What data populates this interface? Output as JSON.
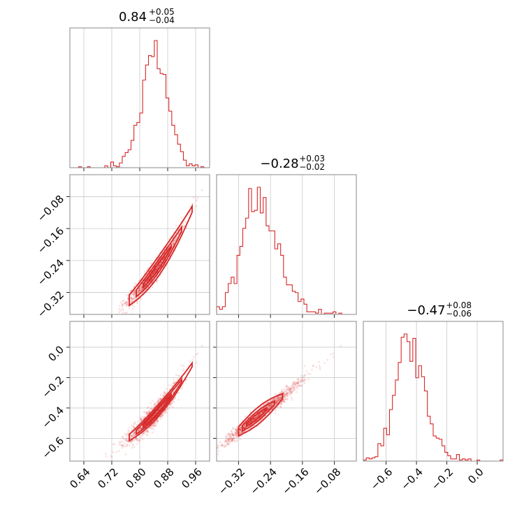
{
  "chart_data": {
    "type": "corner",
    "color": "#d62728",
    "parameters": [
      {
        "median": 0.84,
        "err_plus": 0.05,
        "err_minus": 0.04,
        "title_main": "0.84",
        "title_plus": "+0.05",
        "title_minus": "−0.04",
        "range": [
          0.6,
          1.0
        ],
        "ticks": [
          0.64,
          0.72,
          0.8,
          0.88,
          0.96
        ],
        "tick_labels": [
          "0.64",
          "0.72",
          "0.80",
          "0.88",
          "0.96"
        ],
        "hist_sigma": 0.035
      },
      {
        "median": -0.28,
        "err_plus": 0.03,
        "err_minus": 0.02,
        "title_main": "−0.28",
        "title_plus": "+0.03",
        "title_minus": "−0.02",
        "range": [
          -0.375,
          -0.025
        ],
        "ticks": [
          -0.32,
          -0.24,
          -0.16,
          -0.08
        ],
        "tick_labels": [
          "−0.32",
          "−0.24",
          "−0.16",
          "−0.08"
        ],
        "hist_sigma": 0.018
      },
      {
        "median": -0.47,
        "err_plus": 0.08,
        "err_minus": 0.06,
        "title_main": "−0.47",
        "title_plus": "+0.08",
        "title_minus": "−0.06",
        "range": [
          -0.75,
          0.17
        ],
        "ticks": [
          -0.6,
          -0.4,
          -0.2,
          0.0
        ],
        "tick_labels": [
          "−0.6",
          "−0.4",
          "−0.2",
          "0.0"
        ],
        "hist_sigma": 0.055
      }
    ],
    "correlations": {
      "p2_vs_p1": "positive, nonlinear (curving upward toward high p1)",
      "p3_vs_p1": "positive, nonlinear",
      "p3_vs_p2": "strong positive, near-linear"
    },
    "grid": true
  }
}
